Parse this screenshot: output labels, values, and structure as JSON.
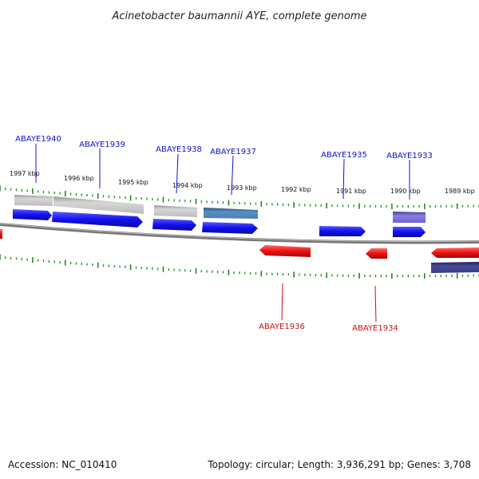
{
  "title": "Acinetobacter baumannii AYE, complete genome",
  "footer": {
    "accession": "Accession: NC_010410",
    "summary": "Topology: circular; Length: 3,936,291 bp; Genes: 3,708"
  },
  "colors": {
    "forward_gene": "#1010ee",
    "reverse_gene": "#ee1010",
    "grey_feature": "#bbbbbb",
    "steel_feature": "#4a7fb0",
    "purple_feature": "#6a5fcc",
    "navy_feature": "#3a3a8a",
    "tick": "#228822",
    "backbone": "#888888",
    "forward_label": "#1010cc",
    "reverse_label": "#cc1010"
  },
  "kbp_labels": [
    "1997 kbp",
    "1996 kbp",
    "1995 kbp",
    "1994 kbp",
    "1993 kbp",
    "1992 kbp",
    "1991 kbp",
    "1990 kbp",
    "1989 kbp"
  ],
  "forward_genes": [
    {
      "label": "ABAYE1940"
    },
    {
      "label": "ABAYE1939"
    },
    {
      "label": "ABAYE1938"
    },
    {
      "label": "ABAYE1937"
    },
    {
      "label": "ABAYE1935"
    },
    {
      "label": "ABAYE1933"
    }
  ],
  "reverse_genes": [
    {
      "label": "ABAYE1936"
    },
    {
      "label": "ABAYE1934"
    }
  ]
}
